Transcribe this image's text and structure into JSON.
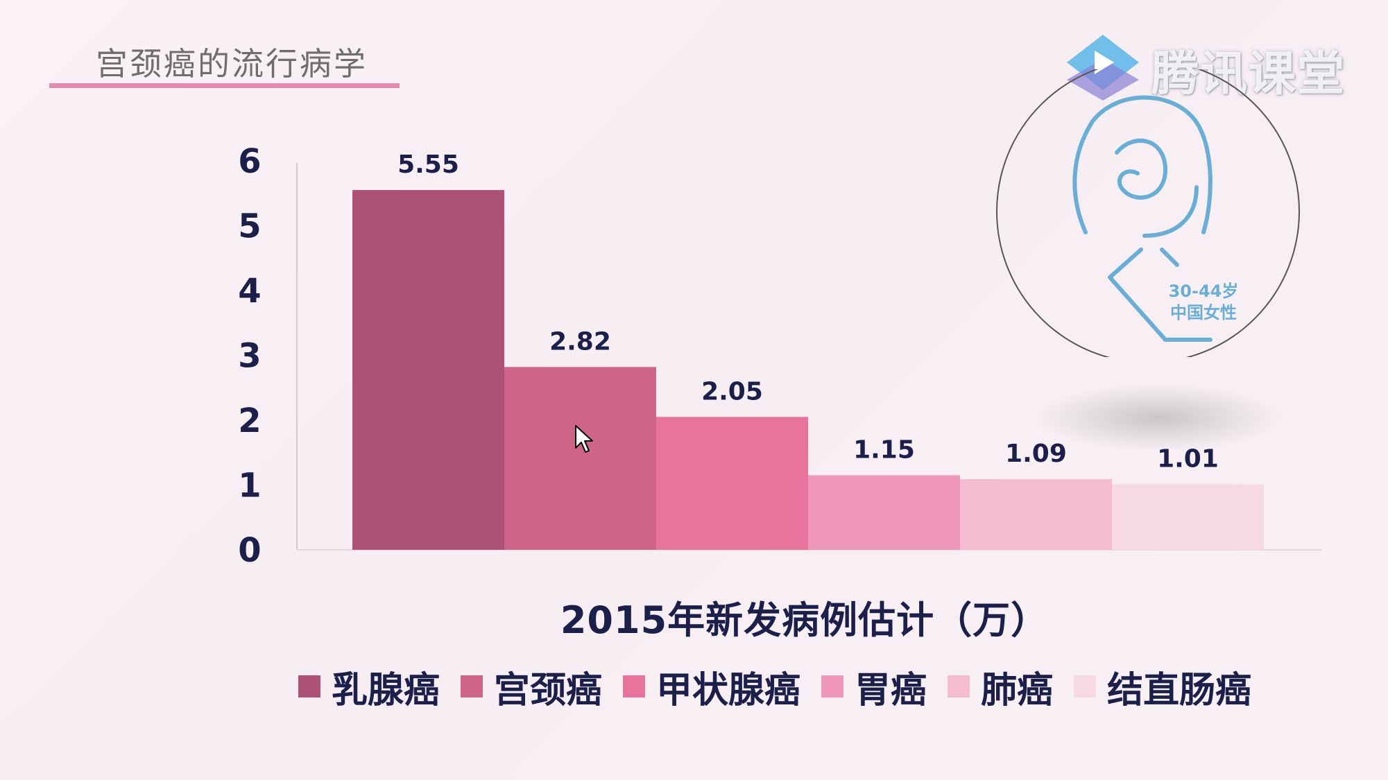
{
  "slide": {
    "title": "宫颈癌的流行病学"
  },
  "watermark": {
    "text": "腾讯课堂"
  },
  "badge": {
    "line1": "30-44岁",
    "line2": "中国女性",
    "icon": "woman-outline-icon",
    "color": "#6aaed6"
  },
  "colors": {
    "series": [
      "#ad5277",
      "#cf648b",
      "#e8749d",
      "#ef97b8",
      "#f4bbd1",
      "#f7d8e5"
    ],
    "text": "#1b1f4a",
    "title_underline": "#e58bb0"
  },
  "chart_data": {
    "type": "bar",
    "xlabel": "2015年新发病例估计（万）",
    "ylabel": "",
    "ylim": [
      0,
      6
    ],
    "yticks": [
      0,
      1,
      2,
      3,
      4,
      5,
      6
    ],
    "grid": false,
    "legend_position": "bottom",
    "categories": [
      "乳腺癌",
      "宫颈癌",
      "甲状腺癌",
      "胃癌",
      "肺癌",
      "结直肠癌"
    ],
    "values": [
      5.55,
      2.82,
      2.05,
      1.15,
      1.09,
      1.01
    ],
    "value_labels": [
      "5.55",
      "2.82",
      "2.05",
      "1.15",
      "1.09",
      "1.01"
    ]
  }
}
